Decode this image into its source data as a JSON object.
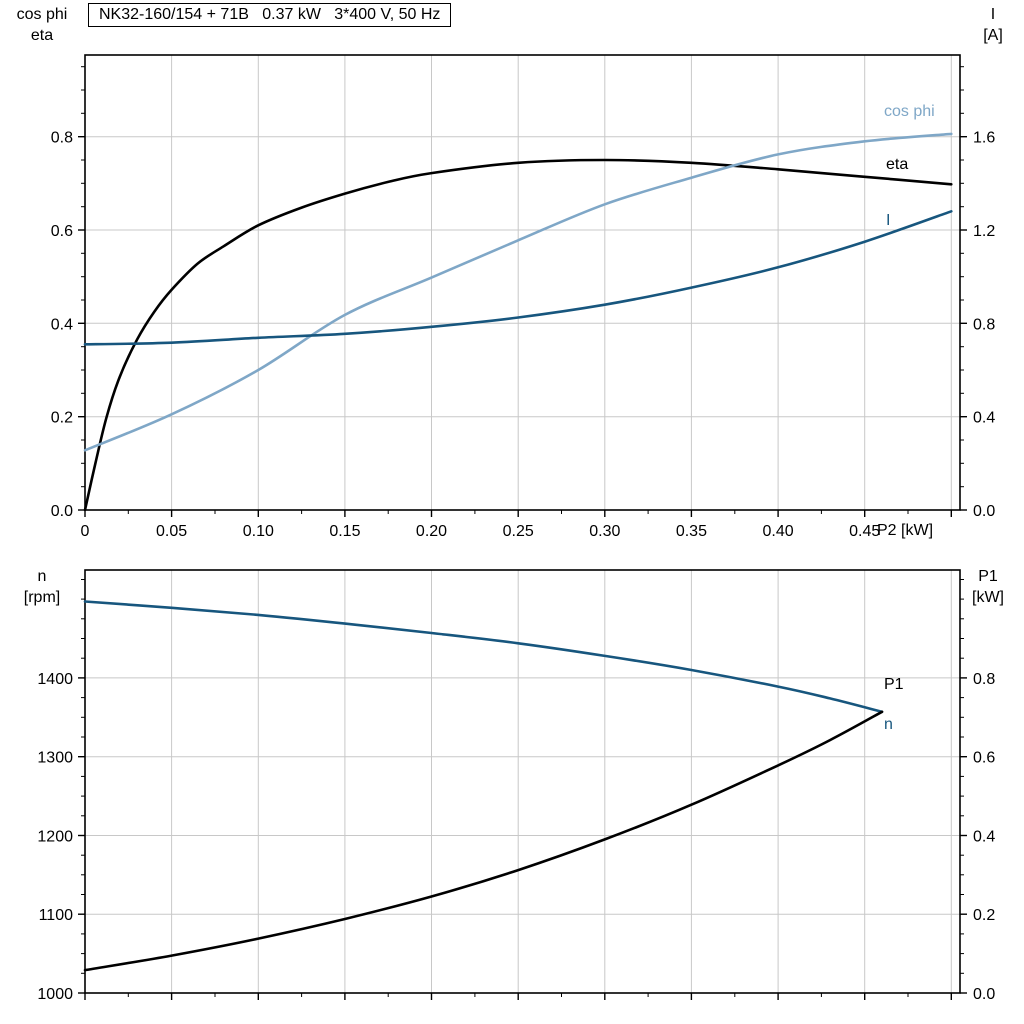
{
  "style": {
    "background": "#ffffff",
    "grid_color": "#c8c8c8",
    "axis_color": "#000000",
    "dark_blue": "#17567e",
    "light_blue": "#7fa7c7",
    "black": "#000000"
  },
  "chart_data": [
    {
      "type": "line",
      "title": "NK32-160/154 + 71B   0.37 kW   3*400 V, 50 Hz",
      "x": {
        "label": "P2 [kW]",
        "min": 0,
        "max": 0.505,
        "ticks": [
          0,
          0.05,
          0.1,
          0.15,
          0.2,
          0.25,
          0.3,
          0.35,
          0.4,
          0.45,
          0.5
        ],
        "tick_labels": [
          "0",
          "0.05",
          "0.10",
          "0.15",
          "0.20",
          "0.25",
          "0.30",
          "0.35",
          "0.40",
          "0.45",
          ""
        ],
        "minor_step": 0.025
      },
      "yl": {
        "title_lines": [
          "cos phi",
          "eta"
        ],
        "min": 0,
        "max": 0.975,
        "ticks": [
          0,
          0.2,
          0.4,
          0.6,
          0.8
        ],
        "tick_labels": [
          "0.0",
          "0.2",
          "0.4",
          "0.6",
          "0.8"
        ],
        "minor_step": 0.05
      },
      "yr": {
        "title_lines": [
          "I",
          "[A]"
        ],
        "min": 0,
        "max": 1.95,
        "ticks": [
          0,
          0.4,
          0.8,
          1.2,
          1.6
        ],
        "tick_labels": [
          "0.0",
          "0.4",
          "0.8",
          "1.2",
          "1.6"
        ],
        "minor_step": 0.1
      },
      "grid": true,
      "series": [
        {
          "id": "eta",
          "name": "eta",
          "axis": "left",
          "color": "#000000",
          "x": [
            0,
            0.006,
            0.0125,
            0.02,
            0.03,
            0.04,
            0.05,
            0.065,
            0.08,
            0.1,
            0.125,
            0.15,
            0.175,
            0.2,
            0.25,
            0.3,
            0.35,
            0.4,
            0.45,
            0.5
          ],
          "y": [
            0,
            0.1,
            0.2,
            0.285,
            0.365,
            0.425,
            0.472,
            0.528,
            0.565,
            0.61,
            0.648,
            0.678,
            0.703,
            0.722,
            0.744,
            0.75,
            0.744,
            0.73,
            0.714,
            0.698
          ]
        },
        {
          "id": "cos-phi",
          "name": "cos phi",
          "axis": "left",
          "color": "#7fa7c7",
          "x": [
            0,
            0.05,
            0.1,
            0.15,
            0.2,
            0.25,
            0.3,
            0.35,
            0.4,
            0.45,
            0.5
          ],
          "y": [
            0.128,
            0.205,
            0.3,
            0.418,
            0.498,
            0.578,
            0.655,
            0.712,
            0.762,
            0.79,
            0.806
          ]
        },
        {
          "id": "current",
          "name": "I",
          "axis": "right",
          "color": "#17567e",
          "x": [
            0,
            0.05,
            0.1,
            0.15,
            0.2,
            0.25,
            0.3,
            0.35,
            0.4,
            0.45,
            0.5
          ],
          "y": [
            0.71,
            0.717,
            0.738,
            0.755,
            0.785,
            0.825,
            0.88,
            0.953,
            1.04,
            1.15,
            1.28
          ]
        }
      ]
    },
    {
      "type": "line",
      "title": "",
      "x": {
        "label": "",
        "min": 0,
        "max": 0.505,
        "ticks": [
          0,
          0.05,
          0.1,
          0.15,
          0.2,
          0.25,
          0.3,
          0.35,
          0.4,
          0.45,
          0.5
        ],
        "tick_labels": [],
        "minor_step": 0.025
      },
      "yl": {
        "title_lines": [
          "n",
          "[rpm]"
        ],
        "min": 1000,
        "max": 1537,
        "ticks": [
          1000,
          1100,
          1200,
          1300,
          1400
        ],
        "tick_labels": [
          "1000",
          "1100",
          "1200",
          "1300",
          "1400"
        ],
        "minor_step": 25
      },
      "yr": {
        "title_lines": [
          "P1",
          "[kW]"
        ],
        "min": 0,
        "max": 1.074,
        "ticks": [
          0,
          0.2,
          0.4,
          0.6,
          0.8
        ],
        "tick_labels": [
          "0.0",
          "0.2",
          "0.4",
          "0.6",
          "0.8"
        ],
        "minor_step": 0.05
      },
      "grid": true,
      "series": [
        {
          "id": "speed",
          "name": "n",
          "axis": "left",
          "color": "#17567e",
          "x": [
            0,
            0.05,
            0.1,
            0.15,
            0.2,
            0.25,
            0.3,
            0.35,
            0.4,
            0.43,
            0.46
          ],
          "y": [
            1497,
            1489,
            1480,
            1469,
            1457,
            1444,
            1428,
            1410,
            1389,
            1374,
            1357
          ]
        },
        {
          "id": "p1",
          "name": "P1",
          "axis": "right",
          "color": "#000000",
          "x": [
            0,
            0.05,
            0.1,
            0.15,
            0.2,
            0.25,
            0.3,
            0.35,
            0.4,
            0.43,
            0.46
          ],
          "y": [
            0.058,
            0.095,
            0.138,
            0.188,
            0.245,
            0.312,
            0.39,
            0.478,
            0.578,
            0.642,
            0.714
          ]
        }
      ]
    }
  ]
}
